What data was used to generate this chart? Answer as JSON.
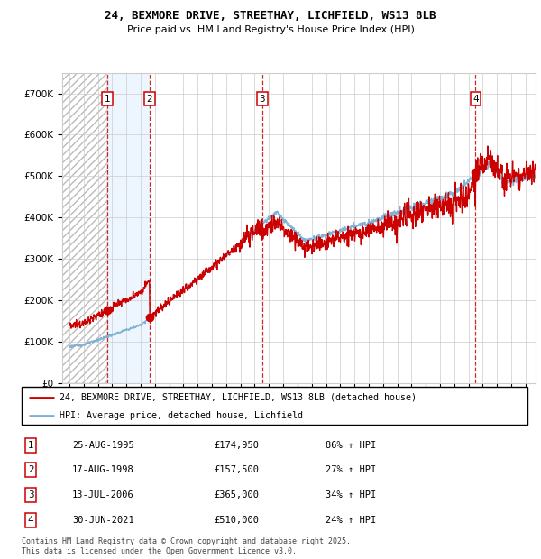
{
  "title": "24, BEXMORE DRIVE, STREETHAY, LICHFIELD, WS13 8LB",
  "subtitle": "Price paid vs. HM Land Registry's House Price Index (HPI)",
  "property_label": "24, BEXMORE DRIVE, STREETHAY, LICHFIELD, WS13 8LB (detached house)",
  "hpi_label": "HPI: Average price, detached house, Lichfield",
  "transactions": [
    {
      "num": 1,
      "date": "25-AUG-1995",
      "year": 1995.65,
      "price": 174950,
      "pct": "86% ↑ HPI"
    },
    {
      "num": 2,
      "date": "17-AUG-1998",
      "year": 1998.62,
      "price": 157500,
      "pct": "27% ↑ HPI"
    },
    {
      "num": 3,
      "date": "13-JUL-2006",
      "year": 2006.53,
      "price": 365000,
      "pct": "34% ↑ HPI"
    },
    {
      "num": 4,
      "date": "30-JUN-2021",
      "year": 2021.49,
      "price": 510000,
      "pct": "24% ↑ HPI"
    }
  ],
  "property_color": "#cc0000",
  "hpi_color": "#7aafd4",
  "marker_color": "#cc0000",
  "vline_color": "#cc0000",
  "ylim": [
    0,
    750000
  ],
  "yticks": [
    0,
    100000,
    200000,
    300000,
    400000,
    500000,
    600000,
    700000
  ],
  "xstart": 1992.5,
  "xend": 2025.7,
  "footer": "Contains HM Land Registry data © Crown copyright and database right 2025.\nThis data is licensed under the Open Government Licence v3.0.",
  "grid_color": "#cccccc",
  "bg_hatch_color": "#bbbbbb",
  "bg_shade_color": "#ddeeff"
}
